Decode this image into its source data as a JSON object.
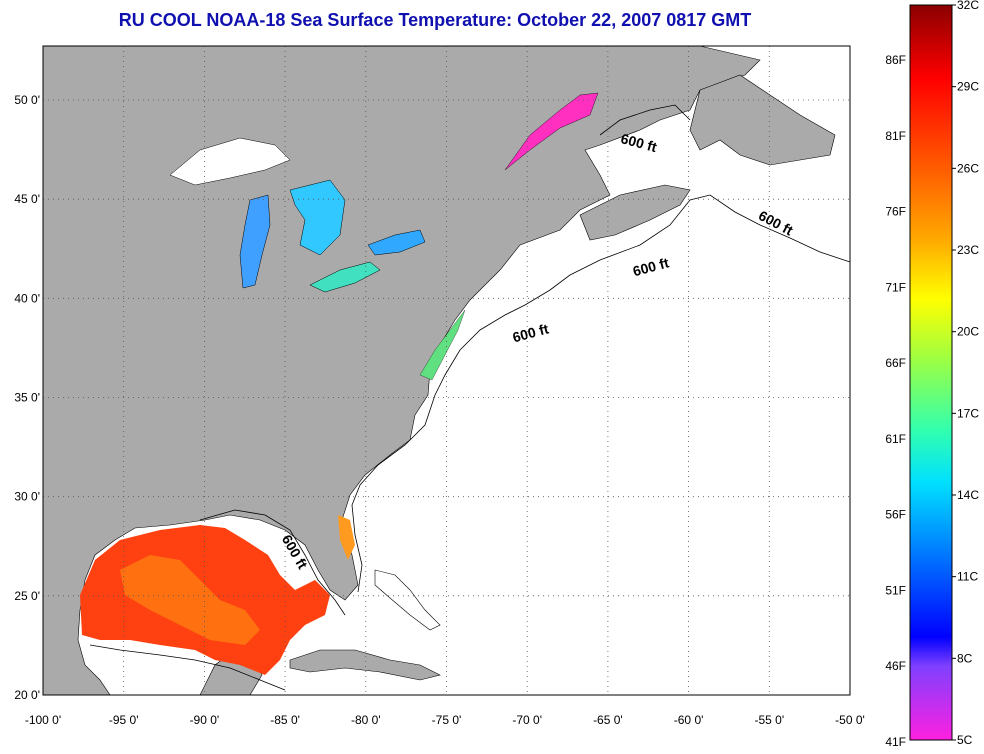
{
  "title": "RU COOL  NOAA-18  Sea Surface Temperature:  October 22, 2007 0817 GMT",
  "lon_ticks": [
    "-100 0'",
    "-95 0'",
    "-90 0'",
    "-85 0'",
    "-80 0'",
    "-75 0'",
    "-70 0'",
    "-65 0'",
    "-60 0'",
    "-55 0'",
    "-50 0'"
  ],
  "lat_ticks": [
    "50 0'",
    "45 0'",
    "40 0'",
    "35 0'",
    "30 0'",
    "25 0'",
    "20 0'"
  ],
  "contour_labels": [
    "600 ft",
    "600 ft",
    "600 ft",
    "600 ft",
    "600 ft"
  ],
  "colorbar": {
    "celsius": [
      "32C",
      "29C",
      "26C",
      "23C",
      "20C",
      "17C",
      "14C",
      "11C",
      "8C",
      "5C"
    ],
    "fahrenheit": [
      "86F",
      "81F",
      "76F",
      "71F",
      "66F",
      "61F",
      "56F",
      "51F",
      "46F",
      "41F"
    ]
  },
  "colors": {
    "land": "#aaaaaa",
    "water": "#ffffff",
    "title": "#1010b0"
  }
}
